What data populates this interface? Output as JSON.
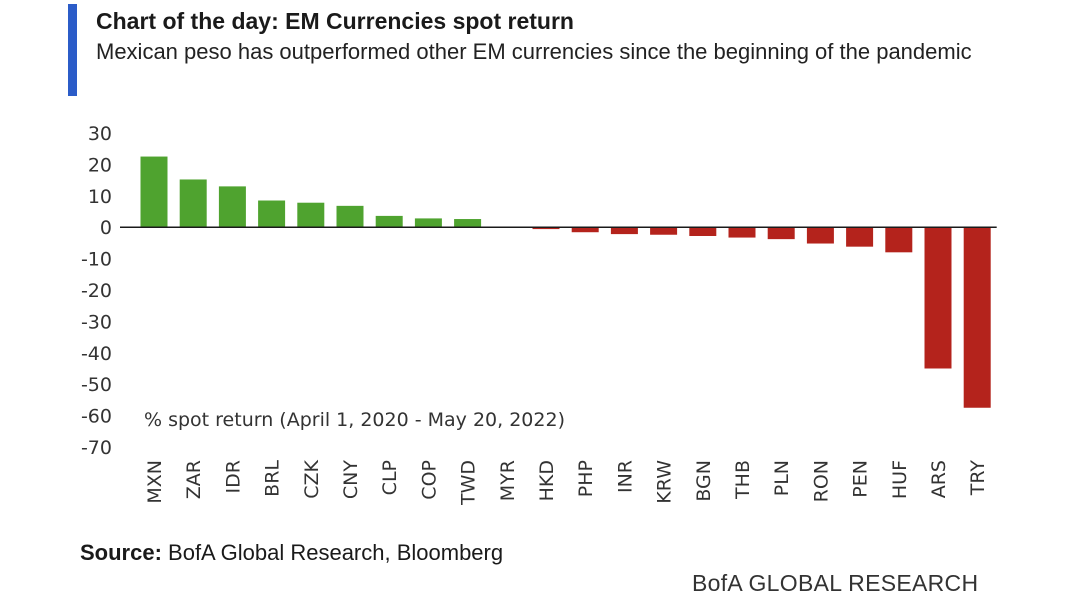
{
  "header": {
    "title": "Chart of the day: EM Currencies spot return",
    "subtitle": "Mexican peso has outperformed other EM currencies since the beginning of the pandemic",
    "accent_color": "#2b5cc8"
  },
  "chart_data": {
    "type": "bar",
    "title": "",
    "xlabel": "",
    "ylabel": "",
    "annotation": "% spot return (April 1, 2020 - May 20, 2022)",
    "categories": [
      "MXN",
      "ZAR",
      "IDR",
      "BRL",
      "CZK",
      "CNY",
      "CLP",
      "COP",
      "TWD",
      "MYR",
      "HKD",
      "PHP",
      "INR",
      "KRW",
      "BGN",
      "THB",
      "PLN",
      "RON",
      "PEN",
      "HUF",
      "ARS",
      "TRY"
    ],
    "values": [
      22.5,
      15.2,
      13.0,
      8.5,
      7.8,
      6.8,
      3.6,
      2.8,
      2.6,
      0.0,
      -0.6,
      -1.6,
      -2.2,
      -2.4,
      -2.8,
      -3.3,
      -3.8,
      -5.2,
      -6.2,
      -8.0,
      -45.0,
      -57.5
    ],
    "ylim": [
      -70,
      30
    ],
    "yticks": [
      30,
      20,
      10,
      0,
      -10,
      -20,
      -30,
      -40,
      -50,
      -60,
      -70
    ],
    "grid": false,
    "positive_color": "#4fa32f",
    "negative_color": "#b4231c"
  },
  "footer": {
    "source_label": "Source:",
    "source_text": " BofA Global Research, Bloomberg",
    "brand": "BofA GLOBAL RESEARCH"
  }
}
